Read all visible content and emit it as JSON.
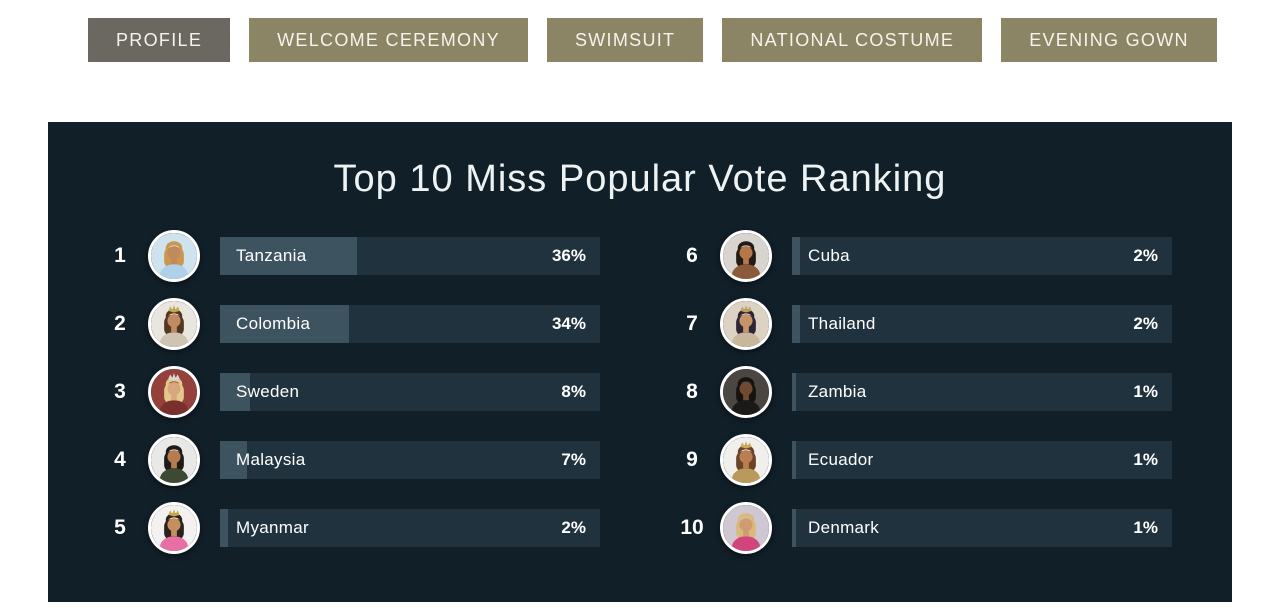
{
  "tabs": [
    {
      "label": "PROFILE",
      "active": true
    },
    {
      "label": "WELCOME CEREMONY",
      "active": false
    },
    {
      "label": "SWIMSUIT",
      "active": false
    },
    {
      "label": "NATIONAL COSTUME",
      "active": false
    },
    {
      "label": "EVENING GOWN",
      "active": false
    }
  ],
  "ranking": {
    "title": "Top 10 Miss Popular Vote Ranking",
    "entries": [
      {
        "rank": "1",
        "country": "Tanzania",
        "percent": "36%",
        "value": 36,
        "avatar": {
          "bg": "#cfe3ee",
          "hair": "#c9974f",
          "skin": "#c08a5e",
          "dress": "#aed0ea",
          "crown": null
        }
      },
      {
        "rank": "2",
        "country": "Colombia",
        "percent": "34%",
        "value": 34,
        "avatar": {
          "bg": "#e9e5df",
          "hair": "#53381f",
          "skin": "#c08a62",
          "dress": "#cfc4b2",
          "crown": "#c2a84f"
        }
      },
      {
        "rank": "3",
        "country": "Sweden",
        "percent": "8%",
        "value": 8,
        "avatar": {
          "bg": "#93413a",
          "hair": "#e3c98e",
          "skin": "#d9a77e",
          "dress": "#7a2f2c",
          "crown": "#d8d8da"
        }
      },
      {
        "rank": "4",
        "country": "Malaysia",
        "percent": "7%",
        "value": 7,
        "avatar": {
          "bg": "#e8e8e6",
          "hair": "#1d1a18",
          "skin": "#b67b4f",
          "dress": "#3c4a34",
          "crown": null
        }
      },
      {
        "rank": "5",
        "country": "Myanmar",
        "percent": "2%",
        "value": 2,
        "avatar": {
          "bg": "#f4f2f0",
          "hair": "#2b2320",
          "skin": "#c78e5e",
          "dress": "#e86fa4",
          "crown": "#caa64e"
        }
      },
      {
        "rank": "6",
        "country": "Cuba",
        "percent": "2%",
        "value": 2,
        "avatar": {
          "bg": "#d8d4cf",
          "hair": "#241b16",
          "skin": "#b5764a",
          "dress": "#8a5a3a",
          "crown": null
        }
      },
      {
        "rank": "7",
        "country": "Thailand",
        "percent": "2%",
        "value": 2,
        "avatar": {
          "bg": "#ddd3c4",
          "hair": "#2e2438",
          "skin": "#c79468",
          "dress": "#c9b79b",
          "crown": "#bfa25a"
        }
      },
      {
        "rank": "8",
        "country": "Zambia",
        "percent": "1%",
        "value": 1,
        "avatar": {
          "bg": "#4a4641",
          "hair": "#15120f",
          "skin": "#6e4a30",
          "dress": "#1c1a18",
          "crown": null
        }
      },
      {
        "rank": "9",
        "country": "Ecuador",
        "percent": "1%",
        "value": 1,
        "avatar": {
          "bg": "#f1efec",
          "hair": "#6b432a",
          "skin": "#b97f52",
          "dress": "#b99a5c",
          "crown": "#c7ab58"
        }
      },
      {
        "rank": "10",
        "country": "Denmark",
        "percent": "1%",
        "value": 1,
        "avatar": {
          "bg": "#cfc8d2",
          "hair": "#d9b97c",
          "skin": "#cf9c72",
          "dress": "#d2447c",
          "crown": null
        }
      }
    ]
  },
  "chart_data": {
    "type": "bar",
    "orientation": "horizontal",
    "title": "Top 10 Miss Popular Vote Ranking",
    "categories": [
      "Tanzania",
      "Colombia",
      "Sweden",
      "Malaysia",
      "Myanmar",
      "Cuba",
      "Thailand",
      "Zambia",
      "Ecuador",
      "Denmark"
    ],
    "values": [
      36,
      34,
      8,
      7,
      2,
      2,
      2,
      1,
      1,
      1
    ],
    "unit": "%",
    "xlim": [
      0,
      100
    ],
    "legend": false
  },
  "colors": {
    "panel_bg": "#111f28",
    "tab_active_bg": "#6b6862",
    "tab_inactive_bg": "#8c8565",
    "bar_bg": "#20323e",
    "bar_fill": "#3e5360",
    "text": "#ffffff"
  }
}
